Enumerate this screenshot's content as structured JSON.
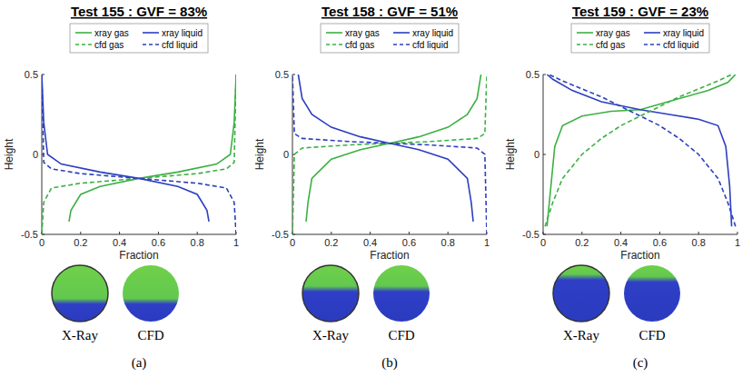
{
  "chart_data": [
    {
      "type": "line",
      "title": "Test 155 : GVF = 83%",
      "xlabel": "Fraction",
      "ylabel": "Height",
      "legend": "top",
      "xlim": [
        0,
        1
      ],
      "ylim": [
        -0.5,
        0.5
      ],
      "xticks": [
        0,
        0.2,
        0.4,
        0.6,
        0.8,
        1
      ],
      "yticks": [
        -0.5,
        0,
        0.5
      ],
      "image_labels": [
        "X-Ray",
        "CFD"
      ],
      "panel_letter": "(a)",
      "series": [
        {
          "name": "xray gas",
          "color": "#3cb043",
          "line_style": "solid",
          "x": [
            0.14,
            0.15,
            0.2,
            0.3,
            0.5,
            0.7,
            0.9,
            0.97,
            0.99,
            1.0
          ],
          "values": [
            -0.42,
            -0.35,
            -0.25,
            -0.2,
            -0.15,
            -0.11,
            -0.06,
            0.0,
            0.2,
            0.5
          ]
        },
        {
          "name": "xray liquid",
          "color": "#2b3fbf",
          "line_style": "solid",
          "x": [
            0.86,
            0.85,
            0.8,
            0.7,
            0.5,
            0.3,
            0.1,
            0.03,
            0.01,
            0.0
          ],
          "values": [
            -0.42,
            -0.35,
            -0.25,
            -0.2,
            -0.15,
            -0.11,
            -0.06,
            0.0,
            0.2,
            0.5
          ]
        },
        {
          "name": "cfd gas",
          "color": "#3cb043",
          "line_style": "dashed",
          "x": [
            0.0,
            0.01,
            0.05,
            0.2,
            0.5,
            0.8,
            0.95,
            0.99,
            1.0
          ],
          "values": [
            -0.5,
            -0.3,
            -0.21,
            -0.18,
            -0.15,
            -0.12,
            -0.09,
            -0.05,
            0.5
          ]
        },
        {
          "name": "cfd liquid",
          "color": "#2b3fbf",
          "line_style": "dashed",
          "x": [
            1.0,
            0.99,
            0.95,
            0.8,
            0.5,
            0.2,
            0.05,
            0.01,
            0.0
          ],
          "values": [
            -0.5,
            -0.3,
            -0.21,
            -0.18,
            -0.15,
            -0.12,
            -0.09,
            -0.05,
            0.5
          ]
        }
      ]
    },
    {
      "type": "line",
      "title": "Test 158 : GVF = 51%",
      "xlabel": "Fraction",
      "ylabel": "Height",
      "legend": "top",
      "xlim": [
        0,
        1
      ],
      "ylim": [
        -0.5,
        0.5
      ],
      "xticks": [
        0,
        0.2,
        0.4,
        0.6,
        0.8,
        1
      ],
      "yticks": [
        -0.5,
        0,
        0.5
      ],
      "image_labels": [
        "X-Ray",
        "CFD"
      ],
      "panel_letter": "(b)",
      "series": [
        {
          "name": "xray gas",
          "color": "#3cb043",
          "line_style": "solid",
          "x": [
            0.07,
            0.08,
            0.1,
            0.2,
            0.35,
            0.5,
            0.65,
            0.8,
            0.9,
            0.95,
            0.97
          ],
          "values": [
            -0.42,
            -0.3,
            -0.15,
            -0.03,
            0.03,
            0.07,
            0.11,
            0.17,
            0.25,
            0.35,
            0.5
          ]
        },
        {
          "name": "xray liquid",
          "color": "#2b3fbf",
          "line_style": "solid",
          "x": [
            0.93,
            0.92,
            0.9,
            0.8,
            0.65,
            0.5,
            0.35,
            0.2,
            0.1,
            0.05,
            0.03
          ],
          "values": [
            -0.42,
            -0.3,
            -0.15,
            -0.03,
            0.03,
            0.07,
            0.11,
            0.17,
            0.25,
            0.35,
            0.5
          ]
        },
        {
          "name": "cfd gas",
          "color": "#3cb043",
          "line_style": "dashed",
          "x": [
            0.0,
            0.01,
            0.05,
            0.3,
            0.5,
            0.7,
            0.95,
            0.99,
            1.0
          ],
          "values": [
            -0.5,
            0.0,
            0.04,
            0.06,
            0.07,
            0.08,
            0.1,
            0.13,
            0.5
          ]
        },
        {
          "name": "cfd liquid",
          "color": "#2b3fbf",
          "line_style": "dashed",
          "x": [
            1.0,
            0.99,
            0.95,
            0.7,
            0.5,
            0.3,
            0.05,
            0.01,
            0.0
          ],
          "values": [
            -0.5,
            0.0,
            0.04,
            0.06,
            0.07,
            0.08,
            0.1,
            0.13,
            0.5
          ]
        }
      ]
    },
    {
      "type": "line",
      "title": "Test 159 : GVF = 23%",
      "xlabel": "Fraction",
      "ylabel": "Height",
      "legend": "top",
      "xlim": [
        0,
        1
      ],
      "ylim": [
        -0.5,
        0.5
      ],
      "xticks": [
        0,
        0.2,
        0.4,
        0.6,
        0.8,
        1
      ],
      "yticks": [
        -0.5,
        0,
        0.5
      ],
      "image_labels": [
        "X-Ray",
        "CFD"
      ],
      "panel_letter": "(c)",
      "series": [
        {
          "name": "xray gas",
          "color": "#3cb043",
          "line_style": "solid",
          "x": [
            0.02,
            0.04,
            0.06,
            0.1,
            0.2,
            0.35,
            0.5,
            0.7,
            0.85,
            0.95,
            0.99
          ],
          "values": [
            -0.45,
            -0.2,
            0.05,
            0.18,
            0.24,
            0.27,
            0.28,
            0.35,
            0.4,
            0.45,
            0.5
          ]
        },
        {
          "name": "xray liquid",
          "color": "#2b3fbf",
          "line_style": "solid",
          "x": [
            0.97,
            0.96,
            0.94,
            0.9,
            0.8,
            0.65,
            0.5,
            0.3,
            0.15,
            0.05,
            0.02
          ],
          "values": [
            -0.45,
            -0.2,
            0.05,
            0.18,
            0.22,
            0.25,
            0.28,
            0.33,
            0.4,
            0.47,
            0.5
          ]
        },
        {
          "name": "cfd gas",
          "color": "#3cb043",
          "line_style": "dashed",
          "x": [
            0.01,
            0.05,
            0.1,
            0.2,
            0.3,
            0.4,
            0.5,
            0.6,
            0.7,
            0.8,
            0.9,
            0.97
          ],
          "values": [
            -0.45,
            -0.3,
            -0.15,
            0.0,
            0.1,
            0.18,
            0.24,
            0.3,
            0.36,
            0.41,
            0.46,
            0.5
          ]
        },
        {
          "name": "cfd liquid",
          "color": "#2b3fbf",
          "line_style": "dashed",
          "x": [
            0.99,
            0.95,
            0.9,
            0.8,
            0.7,
            0.6,
            0.5,
            0.4,
            0.3,
            0.2,
            0.1,
            0.03
          ],
          "values": [
            -0.45,
            -0.3,
            -0.15,
            0.0,
            0.1,
            0.18,
            0.24,
            0.3,
            0.36,
            0.41,
            0.46,
            0.5
          ]
        }
      ]
    }
  ]
}
